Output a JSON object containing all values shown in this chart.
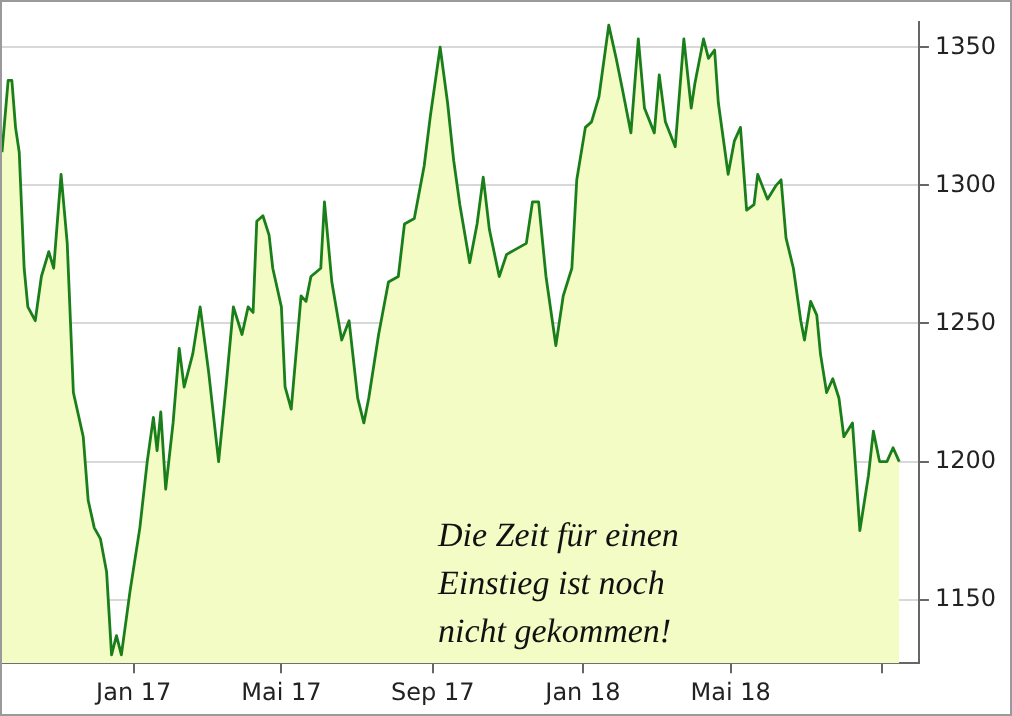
{
  "chart_data": {
    "type": "area",
    "x": [
      "2016-09-16",
      "2016-09-21",
      "2016-09-24",
      "2016-09-27",
      "2016-09-30",
      "2016-10-04",
      "2016-10-07",
      "2016-10-13",
      "2016-10-18",
      "2016-10-24",
      "2016-10-28",
      "2016-11-03",
      "2016-11-08",
      "2016-11-13",
      "2016-11-21",
      "2016-11-25",
      "2016-11-30",
      "2016-12-05",
      "2016-12-10",
      "2016-12-14",
      "2016-12-18",
      "2016-12-22",
      "2016-12-29",
      "2017-01-06",
      "2017-01-12",
      "2017-01-17",
      "2017-01-20",
      "2017-01-23",
      "2017-01-27",
      "2017-02-02",
      "2017-02-07",
      "2017-02-11",
      "2017-02-18",
      "2017-02-24",
      "2017-03-03",
      "2017-03-11",
      "2017-03-17",
      "2017-03-23",
      "2017-03-30",
      "2017-04-04",
      "2017-04-08",
      "2017-04-11",
      "2017-04-16",
      "2017-04-21",
      "2017-04-24",
      "2017-05-01",
      "2017-05-04",
      "2017-05-09",
      "2017-05-17",
      "2017-05-21",
      "2017-05-25",
      "2017-06-02",
      "2017-06-05",
      "2017-06-11",
      "2017-06-19",
      "2017-06-25",
      "2017-07-02",
      "2017-07-07",
      "2017-07-11",
      "2017-07-19",
      "2017-07-27",
      "2017-08-04",
      "2017-08-09",
      "2017-08-17",
      "2017-08-25",
      "2017-08-30",
      "2017-09-07",
      "2017-09-13",
      "2017-09-18",
      "2017-09-23",
      "2017-10-01",
      "2017-10-07",
      "2017-10-12",
      "2017-10-17",
      "2017-10-25",
      "2017-10-31",
      "2017-11-08",
      "2017-11-16",
      "2017-11-21",
      "2017-11-26",
      "2017-12-02",
      "2017-12-10",
      "2017-12-16",
      "2017-12-23",
      "2017-12-27",
      "2018-01-03",
      "2018-01-08",
      "2018-01-14",
      "2018-01-22",
      "2018-01-28",
      "2018-02-02",
      "2018-02-09",
      "2018-02-15",
      "2018-02-20",
      "2018-02-28",
      "2018-03-04",
      "2018-03-09",
      "2018-03-17",
      "2018-03-24",
      "2018-03-30",
      "2018-04-02",
      "2018-04-09",
      "2018-04-13",
      "2018-04-18",
      "2018-04-21",
      "2018-04-29",
      "2018-05-04",
      "2018-05-09",
      "2018-05-14",
      "2018-05-20",
      "2018-05-23",
      "2018-05-31",
      "2018-06-07",
      "2018-06-11",
      "2018-06-15",
      "2018-06-21",
      "2018-06-27",
      "2018-06-30",
      "2018-07-05",
      "2018-07-10",
      "2018-07-13",
      "2018-07-18",
      "2018-07-23",
      "2018-07-28",
      "2018-08-01",
      "2018-08-08",
      "2018-08-11",
      "2018-08-14",
      "2018-08-21",
      "2018-08-25",
      "2018-08-30",
      "2018-09-05",
      "2018-09-10",
      "2018-09-15"
    ],
    "series": [
      {
        "color": "#1a7f1a",
        "values": [
          1312,
          1338,
          1338,
          1321,
          1312,
          1270,
          1256,
          1251,
          1267,
          1276,
          1270,
          1304,
          1279,
          1225,
          1209,
          1186,
          1176,
          1172,
          1160,
          1130,
          1137,
          1130,
          1153,
          1176,
          1200,
          1216,
          1204,
          1218,
          1190,
          1214,
          1241,
          1227,
          1239,
          1256,
          1232,
          1200,
          1227,
          1256,
          1246,
          1256,
          1254,
          1287,
          1289,
          1282,
          1270,
          1256,
          1227,
          1219,
          1260,
          1258,
          1267,
          1270,
          1294,
          1265,
          1244,
          1251,
          1223,
          1214,
          1223,
          1246,
          1265,
          1267,
          1286,
          1288,
          1307,
          1325,
          1350,
          1330,
          1309,
          1293,
          1272,
          1286,
          1303,
          1284,
          1267,
          1275,
          1277,
          1279,
          1294,
          1294,
          1267,
          1242,
          1260,
          1270,
          1302,
          1321,
          1323,
          1332,
          1358,
          1346,
          1335,
          1319,
          1353,
          1328,
          1319,
          1340,
          1323,
          1314,
          1353,
          1328,
          1337,
          1353,
          1346,
          1349,
          1330,
          1304,
          1316,
          1321,
          1291,
          1293,
          1304,
          1295,
          1300,
          1302,
          1281,
          1270,
          1251,
          1244,
          1258,
          1253,
          1239,
          1225,
          1230,
          1223,
          1209,
          1214,
          1195,
          1175,
          1195,
          1211,
          1200,
          1200,
          1205,
          1200
        ]
      }
    ],
    "xlim": [
      "2016-09-16",
      "2018-10-01"
    ],
    "xticks": [
      {
        "value": "2017-01-01",
        "label": "Jan 17"
      },
      {
        "value": "2017-05-01",
        "label": "Mai 17"
      },
      {
        "value": "2017-09-01",
        "label": "Sep 17"
      },
      {
        "value": "2018-01-01",
        "label": "Jan 18"
      },
      {
        "value": "2018-05-01",
        "label": "Mai 18"
      },
      {
        "value": "2018-09-01",
        "label": null
      }
    ],
    "ylim": [
      1127,
      1359
    ],
    "yticks": [
      1150,
      1200,
      1250,
      1300,
      1350
    ],
    "grid": "y",
    "annotations": [
      "Die Zeit für einen\nEinstieg ist noch\nnicht gekommen!"
    ]
  }
}
